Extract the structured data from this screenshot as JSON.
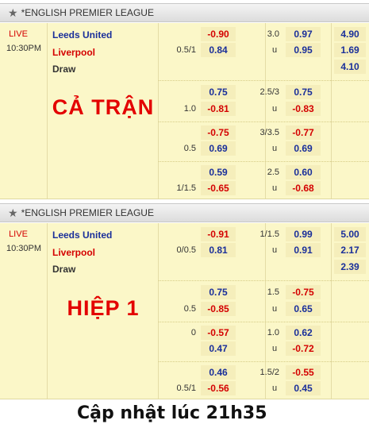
{
  "sections": [
    {
      "league": "*ENGLISH PREMIER LEAGUE",
      "status": "LIVE",
      "time": "10:30PM",
      "home": "Leeds United",
      "away": "Liverpool",
      "draw": "Draw",
      "label": "CẢ TRẬN",
      "rows": [
        {
          "hdp_home": "-0.90",
          "hdp_line": "0.5/1",
          "hdp_away": "0.84",
          "ou_line": "3.0",
          "ou_over": "0.97",
          "ou_under": "0.95",
          "ou_u": "u",
          "x1": "4.90",
          "x2": "1.69",
          "x3": "4.10"
        },
        {
          "hdp_home": "0.75",
          "hdp_line": "1.0",
          "hdp_away": "-0.81",
          "ou_line": "2.5/3",
          "ou_over": "0.75",
          "ou_under": "-0.83",
          "ou_u": "u"
        },
        {
          "hdp_home": "-0.75",
          "hdp_line": "0.5",
          "hdp_away": "0.69",
          "ou_line": "3/3.5",
          "ou_over": "-0.77",
          "ou_under": "0.69",
          "ou_u": "u"
        },
        {
          "hdp_home": "0.59",
          "hdp_line": "1/1.5",
          "hdp_away": "-0.65",
          "ou_line": "2.5",
          "ou_over": "0.60",
          "ou_under": "-0.68",
          "ou_u": "u"
        }
      ]
    },
    {
      "league": "*ENGLISH PREMIER LEAGUE",
      "status": "LIVE",
      "time": "10:30PM",
      "home": "Leeds United",
      "away": "Liverpool",
      "draw": "Draw",
      "label": "HIỆP 1",
      "rows": [
        {
          "hdp_home": "-0.91",
          "hdp_line": "0/0.5",
          "hdp_away": "0.81",
          "ou_line": "1/1.5",
          "ou_over": "0.99",
          "ou_under": "0.91",
          "ou_u": "u",
          "x1": "5.00",
          "x2": "2.17",
          "x3": "2.39"
        },
        {
          "hdp_home": "0.75",
          "hdp_line": "0.5",
          "hdp_away": "-0.85",
          "ou_line": "1.5",
          "ou_over": "-0.75",
          "ou_under": "0.65",
          "ou_u": "u"
        },
        {
          "hdp_home": "-0.57",
          "hdp_line": "0",
          "hdp_away": "0.47",
          "ou_line": "1.0",
          "ou_over": "0.62",
          "ou_under": "-0.72",
          "ou_u": "u"
        },
        {
          "hdp_home": "0.46",
          "hdp_line": "0.5/1",
          "hdp_away": "-0.56",
          "ou_line": "1.5/2",
          "ou_over": "-0.55",
          "ou_under": "0.45",
          "ou_u": "u"
        }
      ]
    }
  ],
  "caption": "Cập nhật lúc 21h35"
}
